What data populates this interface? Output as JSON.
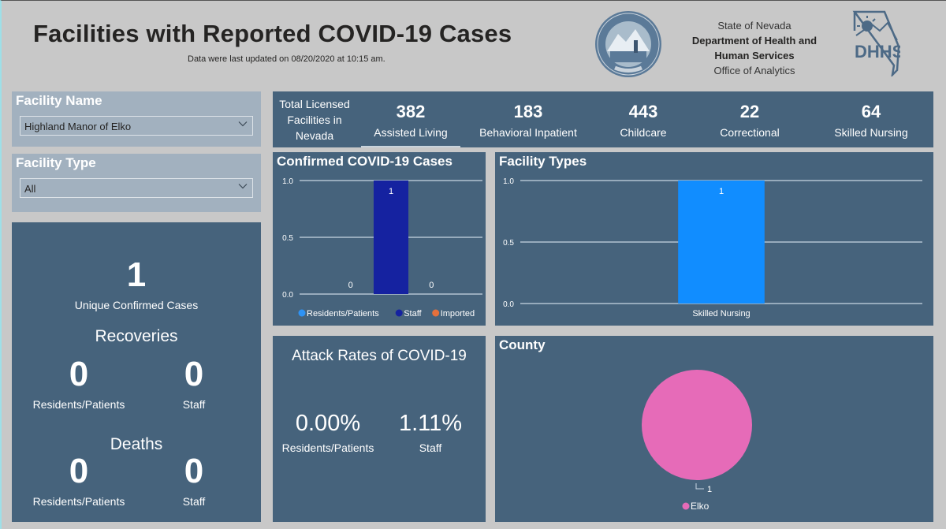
{
  "header": {
    "title": "Facilities with Reported COVID-19 Cases",
    "updated": "Data were last updated on 08/20/2020 at 10:15 am.",
    "org_line1": "State of Nevada",
    "org_line2": "Department of Health and",
    "org_line3": "Human Services",
    "org_line4": "Office of Analytics",
    "seal_icon": "nevada-state-seal",
    "logo_icon": "dhhs-logo"
  },
  "filters": {
    "facility_name": {
      "label": "Facility Name",
      "value": "Highland Manor of Elko"
    },
    "facility_type": {
      "label": "Facility Type",
      "value": "All"
    }
  },
  "totals": {
    "label": "Total Licensed Facilities in Nevada",
    "items": [
      {
        "value": "382",
        "label": "Assisted Living"
      },
      {
        "value": "183",
        "label": "Behavioral Inpatient"
      },
      {
        "value": "443",
        "label": "Childcare"
      },
      {
        "value": "22",
        "label": "Correctional"
      },
      {
        "value": "64",
        "label": "Skilled Nursing"
      }
    ]
  },
  "summary": {
    "unique_cases": "1",
    "unique_cases_label": "Unique Confirmed Cases",
    "recoveries_heading": "Recoveries",
    "recoveries": {
      "residents": "0",
      "residents_label": "Residents/Patients",
      "staff": "0",
      "staff_label": "Staff"
    },
    "deaths_heading": "Deaths",
    "deaths": {
      "residents": "0",
      "residents_label": "Residents/Patients",
      "staff": "0",
      "staff_label": "Staff"
    }
  },
  "attack_rates": {
    "title": "Attack Rates of COVID-19",
    "residents": "0.00%",
    "residents_label": "Residents/Patients",
    "staff": "1.11%",
    "staff_label": "Staff"
  },
  "colors": {
    "panel": "#46637c",
    "background": "#c8c8c8",
    "residents": "#2e93f5",
    "staff": "#1522a0",
    "imported": "#e6703c",
    "skilled_nursing": "#118dff",
    "elko": "#e66bb8"
  },
  "chart_data": [
    {
      "type": "bar",
      "title": "Confirmed COVID-19 Cases",
      "categories": [
        "Residents/Patients",
        "Staff",
        "Imported"
      ],
      "series": [
        {
          "name": "Residents/Patients",
          "values": [
            0,
            null,
            null
          ]
        },
        {
          "name": "Staff",
          "values": [
            null,
            1,
            null
          ]
        },
        {
          "name": "Imported",
          "values": [
            null,
            null,
            0
          ]
        }
      ],
      "values": [
        0,
        1,
        0
      ],
      "data_labels": [
        "0",
        "1",
        "0"
      ],
      "ylim": [
        0,
        1
      ],
      "yticks": [
        "0.0",
        "0.5",
        "1.0"
      ],
      "grid": true,
      "legend": [
        "Residents/Patients",
        "Staff",
        "Imported"
      ],
      "legend_position": "bottom",
      "xlabel": "",
      "ylabel": ""
    },
    {
      "type": "bar",
      "title": "Facility Types",
      "categories": [
        "Skilled Nursing"
      ],
      "values": [
        1
      ],
      "data_labels": [
        "1"
      ],
      "ylim": [
        0,
        1
      ],
      "yticks": [
        "0.0",
        "0.5",
        "1.0"
      ],
      "grid": true,
      "xlabel": "",
      "ylabel": ""
    },
    {
      "type": "pie",
      "title": "County",
      "categories": [
        "Elko"
      ],
      "values": [
        1
      ],
      "data_labels": [
        "1"
      ],
      "legend": [
        "Elko"
      ],
      "legend_position": "bottom"
    }
  ]
}
